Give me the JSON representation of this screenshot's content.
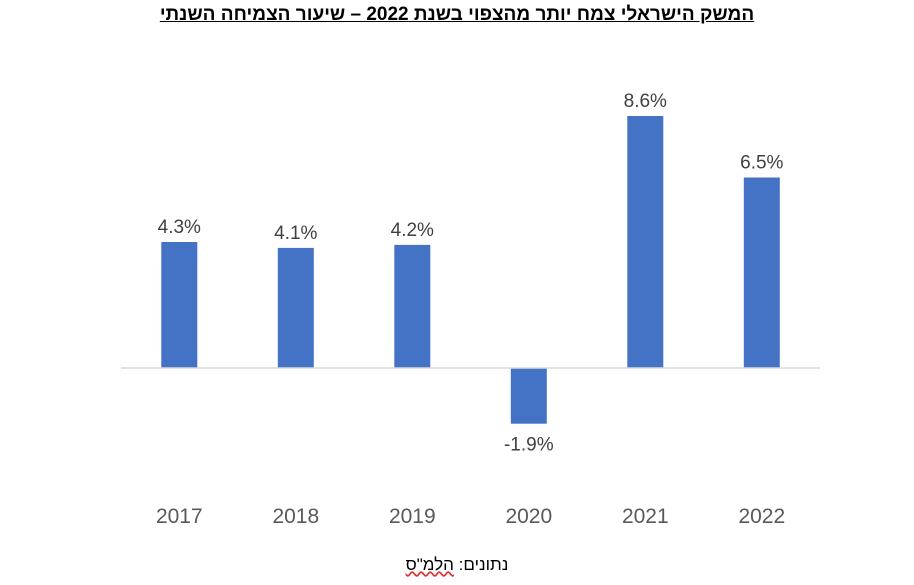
{
  "chart_data": {
    "type": "bar",
    "title": "המשק הישראלי צמח יותר מהצפוי בשנת 2022 – שיעור הצמיחה השנתי",
    "categories": [
      "2017",
      "2018",
      "2019",
      "2020",
      "2021",
      "2022"
    ],
    "values": [
      4.3,
      4.1,
      4.2,
      -1.9,
      8.6,
      6.5
    ],
    "data_labels": [
      "4.3%",
      "4.1%",
      "4.2%",
      "-1.9%",
      "8.6%",
      "6.5%"
    ],
    "unit": "%",
    "ylim": [
      -4,
      10
    ],
    "grid": false,
    "legend": "none",
    "bar_color": "#4472C4",
    "baseline_color": "#D9D9D9"
  },
  "source": {
    "prefix": "נתונים:",
    "name": "הלמ\"ס"
  }
}
